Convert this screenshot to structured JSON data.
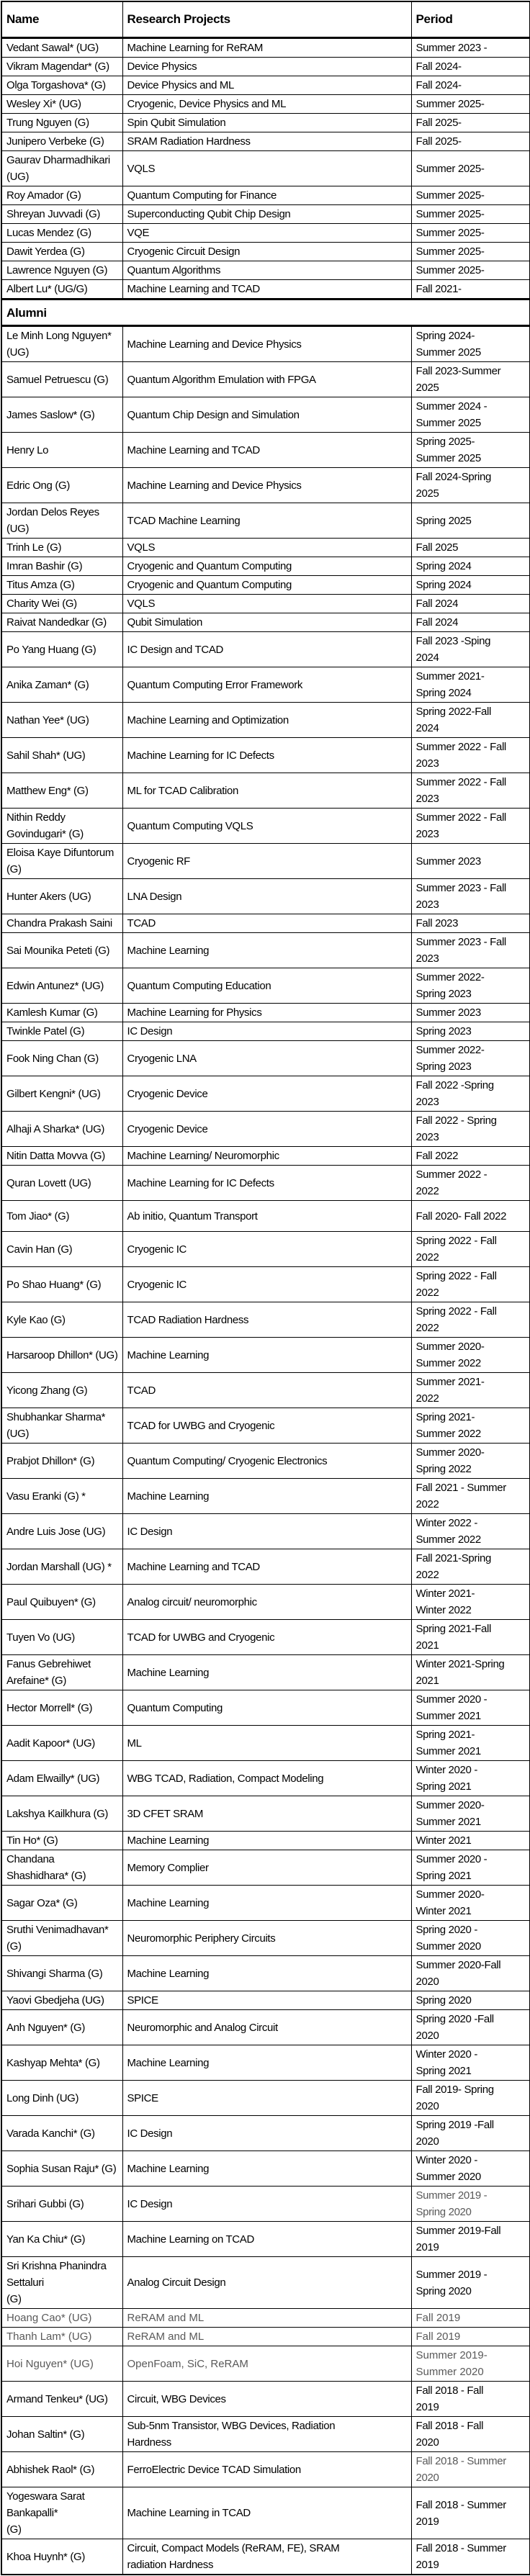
{
  "header": {
    "columns": [
      "Name",
      "Research Projects",
      "Period"
    ]
  },
  "alumni_label": "Alumni",
  "colors": {
    "text": "#000000",
    "muted_text": "#595959",
    "grid": "#000000",
    "background": "#ffffff"
  },
  "current_members": [
    {
      "name": "Vedant Sawal* (UG)",
      "project": "Machine Learning for ReRAM",
      "period": "Summer 2023 -"
    },
    {
      "name": "Vikram Magendar* (G)",
      "project": "Device Physics",
      "period": "Fall 2024-"
    },
    {
      "name": "Olga Torgashova* (G)",
      "project": "Device Physics and ML",
      "period": "Fall 2024-"
    },
    {
      "name": "Wesley Xi* (UG)",
      "project": "Cryogenic, Device Physics and ML",
      "period": "Summer 2025-"
    },
    {
      "name": "Trung Nguyen (G)",
      "project": "Spin Qubit Simulation",
      "period": "Fall 2025-"
    },
    {
      "name": "Junipero Verbeke (G)",
      "project": "SRAM Radiation Hardness",
      "period": "Fall 2025-"
    },
    {
      "name": "Gaurav Dharmadhikari (UG)",
      "project": "VQLS",
      "period": "Summer 2025-"
    },
    {
      "name": "Roy Amador (G)",
      "project": "Quantum Computing for Finance",
      "period": "Summer 2025-"
    },
    {
      "name": "Shreyan Juvvadi (G)",
      "project": "Superconducting Qubit Chip Design",
      "period": "Summer 2025-"
    },
    {
      "name": "Lucas Mendez (G)",
      "project": "VQE",
      "period": "Summer 2025-"
    },
    {
      "name": "Dawit Yerdea (G)",
      "project": "Cryogenic Circuit Design",
      "period": "Summer 2025-"
    },
    {
      "name": "Lawrence Nguyen (G)",
      "project": "Quantum Algorithms",
      "period": "Summer 2025-"
    },
    {
      "name": "Albert Lu* (UG/G)",
      "project": "Machine Learning and TCAD",
      "period": "Fall 2021-"
    }
  ],
  "alumni": [
    {
      "name": "Le Minh Long Nguyen* (UG)",
      "project": "Machine Learning and Device Physics",
      "period": "Spring 2024-\nSummer 2025"
    },
    {
      "name": "Samuel Petruescu (G)",
      "project": "Quantum Algorithm Emulation with FPGA",
      "period": "Fall 2023-Summer\n2025"
    },
    {
      "name": "James Saslow* (G)",
      "project": "Quantum Chip Design and Simulation",
      "period": "Summer 2024 -\nSummer 2025"
    },
    {
      "name": "Henry Lo",
      "project": "Machine Learning and TCAD",
      "period": "Spring 2025-\nSummer 2025"
    },
    {
      "name": "Edric Ong (G)",
      "project": "Machine Learning and Device Physics",
      "period": "Fall 2024-Spring\n2025"
    },
    {
      "name": "Jordan Delos Reyes (UG)",
      "project": "TCAD Machine Learning",
      "period": "Spring 2025"
    },
    {
      "name": "Trinh Le (G)",
      "project": "VQLS",
      "period": "Fall 2025"
    },
    {
      "name": "Imran Bashir (G)",
      "project": "Cryogenic and Quantum Computing",
      "period": "Spring 2024"
    },
    {
      "name": "Titus Amza (G)",
      "project": "Cryogenic and Quantum Computing",
      "period": "Spring 2024"
    },
    {
      "name": "Charity Wei (G)",
      "project": "VQLS",
      "period": "Fall 2024"
    },
    {
      "name": "Raivat Nandedkar (G)",
      "project": "Qubit Simulation",
      "period": "Fall 2024"
    },
    {
      "name": "Po Yang Huang (G)",
      "project": "IC Design and TCAD",
      "period": "Fall 2023 -Sping\n2024"
    },
    {
      "name": "Anika Zaman* (G)",
      "project": "Quantum Computing Error Framework",
      "period": "Summer 2021-\nSpring 2024"
    },
    {
      "name": "Nathan Yee* (UG)",
      "project": "Machine Learning and Optimization",
      "period": "Spring 2022-Fall\n2024"
    },
    {
      "name": "Sahil Shah* (UG)",
      "project": "Machine Learning for IC Defects",
      "period": "Summer 2022 - Fall\n2023"
    },
    {
      "name": "Matthew Eng* (G)",
      "project": "ML for TCAD Calibration",
      "period": "Summer 2022 - Fall\n2023"
    },
    {
      "name": "Nithin Reddy Govindugari* (G)",
      "project": "Quantum Computing VQLS",
      "period": "Summer 2022 - Fall\n2023"
    },
    {
      "name": "Eloisa Kaye Difuntorum (G)",
      "project": "Cryogenic RF",
      "period": "Summer 2023"
    },
    {
      "name": "Hunter Akers (UG)",
      "project": "LNA Design",
      "period": "Summer 2023 - Fall\n2023"
    },
    {
      "name": "Chandra Prakash Saini",
      "project": "TCAD",
      "period": "Fall 2023"
    },
    {
      "name": "Sai Mounika Peteti (G)",
      "project": "Machine Learning",
      "period": "Summer 2023 - Fall\n2023"
    },
    {
      "name": "Edwin Antunez* (UG)",
      "project": "Quantum Computing Education",
      "period": "Summer 2022-\nSpring 2023"
    },
    {
      "name": "Kamlesh Kumar (G)",
      "project": "Machine Learning for Physics",
      "period": "Summer 2023"
    },
    {
      "name": "Twinkle Patel (G)",
      "project": "IC Design",
      "period": "Spring 2023"
    },
    {
      "name": "Fook Ning Chan (G)",
      "project": "Cryogenic LNA",
      "period": "Summer 2022-\nSpring 2023"
    },
    {
      "name": "Gilbert Kengni* (UG)",
      "project": "Cryogenic Device",
      "period": "Fall 2022 -Spring\n2023"
    },
    {
      "name": "Alhaji A Sharka* (UG)",
      "project": "Cryogenic Device",
      "period": "Fall 2022 - Spring\n2023"
    },
    {
      "name": "Nitin Datta Movva (G)",
      "project": "Machine Learning/ Neuromorphic",
      "period": "Fall 2022"
    },
    {
      "name": "Quran Lovett (UG)",
      "project": "Machine Learning for IC Defects",
      "period": "Summer 2022 -\n2022"
    },
    {
      "name": "Tom Jiao* (G)",
      "project": "Ab initio, Quantum Transport",
      "period": "Fall 2020- Fall 2022",
      "tall": true
    },
    {
      "name": "Cavin Han (G)",
      "project": "Cryogenic IC",
      "period": "Spring 2022 - Fall\n2022"
    },
    {
      "name": "Po Shao Huang* (G)",
      "project": "Cryogenic IC",
      "period": "Spring 2022 - Fall\n2022"
    },
    {
      "name": "Kyle Kao (G)",
      "project": "TCAD Radiation Hardness",
      "period": "Spring 2022 - Fall\n2022"
    },
    {
      "name": "Harsaroop Dhillon* (UG)",
      "project": "Machine Learning",
      "period": "Summer 2020-\nSummer 2022"
    },
    {
      "name": "Yicong Zhang (G)",
      "project": "TCAD",
      "period": "Summer 2021-\n2022"
    },
    {
      "name": "Shubhankar Sharma* (UG)",
      "project": "TCAD for UWBG and Cryogenic",
      "period": "Spring 2021-\nSummer 2022"
    },
    {
      "name": "Prabjot Dhillon* (G)",
      "project": "Quantum Computing/ Cryogenic Electronics",
      "period": "Summer 2020-\nSpring 2022"
    },
    {
      "name": "Vasu Eranki (G) *",
      "project": "Machine Learning",
      "period": "Fall 2021 - Summer\n2022"
    },
    {
      "name": "Andre Luis Jose (UG)",
      "project": "IC Design",
      "period": "Winter 2022 -\nSummer 2022"
    },
    {
      "name": "Jordan Marshall (UG) *",
      "project": "Machine Learning and TCAD",
      "period": "Fall 2021-Spring\n2022"
    },
    {
      "name": "Paul Quibuyen* (G)",
      "project": "Analog circuit/ neuromorphic",
      "period": "Winter 2021-\nWinter 2022"
    },
    {
      "name": "Tuyen Vo (UG)",
      "project": "TCAD for UWBG and Cryogenic",
      "period": "Spring 2021-Fall\n2021"
    },
    {
      "name": "Fanus Gebrehiwet Arefaine* (G)",
      "project": "Machine Learning",
      "period": "Winter 2021-Spring\n2021"
    },
    {
      "name": "Hector Morrell* (G)",
      "project": "Quantum Computing",
      "period": "Summer 2020 -\nSummer 2021"
    },
    {
      "name": "Aadit Kapoor* (UG)",
      "project": "ML",
      "period": "Spring 2021-\nSummer 2021"
    },
    {
      "name": "Adam Elwailly* (UG)",
      "project": "WBG TCAD, Radiation, Compact Modeling",
      "period": "Winter 2020 -\nSpring 2021"
    },
    {
      "name": "Lakshya Kailkhura (G)",
      "project": "3D CFET SRAM",
      "period": "Summer 2020-\nSummer 2021"
    },
    {
      "name": "Tin Ho* (G)",
      "project": "Machine Learning",
      "period": "Winter 2021"
    },
    {
      "name": "Chandana Shashidhara* (G)",
      "project": "Memory Complier",
      "period": "Summer 2020 -\nSpring 2021"
    },
    {
      "name": "Sagar Oza* (G)",
      "project": "Machine Learning",
      "period": "Summer 2020-\nWinter 2021"
    },
    {
      "name": "Sruthi Venimadhavan* (G)",
      "project": "Neuromorphic Periphery Circuits",
      "period": "Spring 2020 -\nSummer 2020"
    },
    {
      "name": "Shivangi Sharma (G)",
      "project": "Machine Learning",
      "period": "Summer 2020-Fall\n2020"
    },
    {
      "name": "Yaovi Gbedjeha (UG)",
      "project": "SPICE",
      "period": "Spring 2020"
    },
    {
      "name": "Anh Nguyen* (G)",
      "project": "Neuromorphic and Analog Circuit",
      "period": "Spring 2020 -Fall\n2020"
    },
    {
      "name": "Kashyap Mehta* (G)",
      "project": "Machine Learning",
      "period": "Winter 2020 -\nSpring 2021"
    },
    {
      "name": "Long Dinh (UG)",
      "project": "SPICE",
      "period": "Fall 2019- Spring\n2020"
    },
    {
      "name": "Varada Kanchi* (G)",
      "project": "IC Design",
      "period": "Spring 2019 -Fall\n2020"
    },
    {
      "name": "Sophia Susan Raju* (G)",
      "project": "Machine Learning",
      "period": "Winter 2020 -\nSummer 2020"
    },
    {
      "name": "Srihari Gubbi (G)",
      "project": "IC Design",
      "period": "Summer 2019 -\nSpring 2020",
      "gray_period": true
    },
    {
      "name": "Yan Ka Chiu* (G)",
      "project": "Machine Learning on TCAD",
      "period": "Summer 2019-Fall\n2019"
    },
    {
      "name": "Sri Krishna Phanindra Settaluri\n(G)",
      "project": "Analog Circuit Design",
      "period": "Summer 2019 -\nSpring 2020"
    },
    {
      "name": "Hoang Cao* (UG)",
      "project": "ReRAM and ML",
      "period": "Fall 2019",
      "gray_row": true
    },
    {
      "name": "Thanh Lam* (UG)",
      "project": "ReRAM and ML",
      "period": "Fall 2019",
      "gray_row": true
    },
    {
      "name": "Hoi Nguyen* (UG)",
      "project": "OpenFoam, SiC, ReRAM",
      "period": "Summer 2019-\nSummer 2020",
      "gray_row": true
    },
    {
      "name": "Armand Tenkeu* (UG)",
      "project": "Circuit, WBG Devices",
      "period": "Fall 2018 - Fall\n2019"
    },
    {
      "name": "Johan Saltin* (G)",
      "project": "Sub-5nm Transistor, WBG Devices, Radiation\nHardness",
      "period": "Fall 2018 - Fall\n2020"
    },
    {
      "name": "Abhishek Raol* (G)",
      "project": "FerroElectric Device TCAD Simulation",
      "period": "Fall 2018 - Summer\n2020",
      "gray_period": true
    },
    {
      "name": "Yogeswara Sarat Bankapalli*\n(G)",
      "project": "Machine Learning in TCAD",
      "period": "Fall 2018 - Summer\n2019"
    },
    {
      "name": "Khoa Huynh* (G)",
      "project": "Circuit, Compact Models (ReRAM, FE), SRAM\nradiation Hardness",
      "period": "Fall 2018 - Summer\n2019"
    }
  ]
}
